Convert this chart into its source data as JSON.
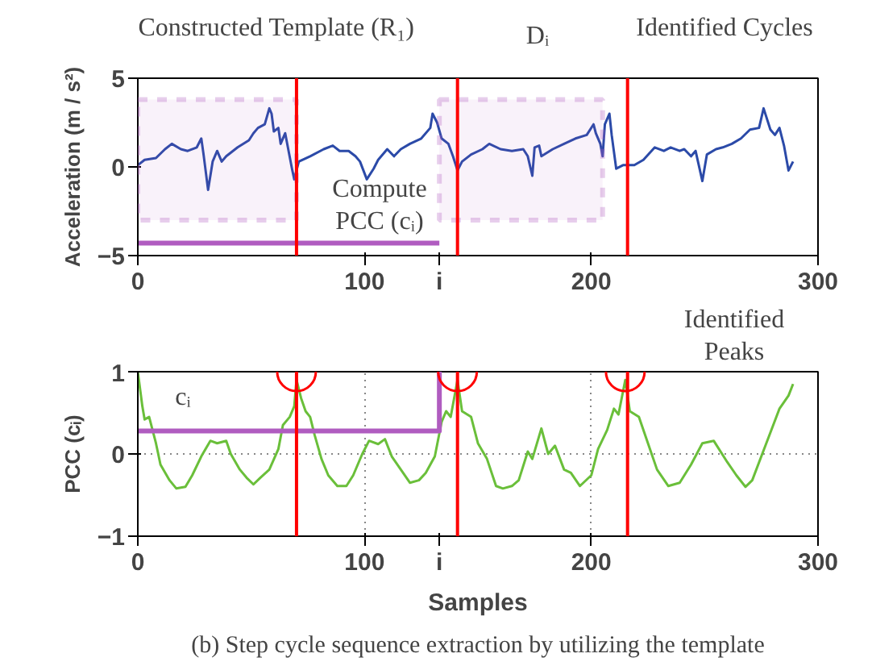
{
  "chart_data": [
    {
      "type": "line",
      "ylabel": "Acceleration (m / s²)",
      "xlim": [
        0,
        300
      ],
      "ylim": [
        -5,
        5
      ],
      "xticks": [
        0,
        100,
        {
          "value": 133,
          "label": "i"
        },
        200,
        300
      ],
      "yticks": [
        -5,
        0,
        5
      ],
      "grid": false,
      "series": [
        {
          "color": "#2b4aa8",
          "x": [
            0,
            3,
            8,
            12,
            15,
            19,
            22,
            26,
            28,
            29,
            31,
            33,
            35,
            37,
            39,
            44,
            49,
            51,
            53,
            56,
            58,
            59,
            60,
            62,
            63,
            65,
            68,
            69,
            71,
            76,
            82,
            86,
            89,
            93,
            96,
            98,
            101,
            104,
            106,
            110,
            113,
            116,
            120,
            125,
            129,
            130,
            132,
            134,
            137,
            139,
            141,
            143,
            147,
            152,
            155,
            160,
            165,
            170,
            172,
            174,
            175,
            177,
            178,
            183,
            188,
            193,
            198,
            201,
            202,
            204,
            205,
            206,
            208,
            209,
            211,
            214,
            219,
            223,
            228,
            232,
            235,
            239,
            241,
            244,
            246,
            249,
            251,
            255,
            258,
            262,
            266,
            270,
            274,
            276,
            279,
            281,
            283,
            285,
            287,
            289
          ],
          "values": [
            0.1,
            0.4,
            0.5,
            1.0,
            1.3,
            1.0,
            0.9,
            1.1,
            1.6,
            0.7,
            -1.3,
            0.3,
            0.9,
            0.3,
            0.6,
            1.1,
            1.5,
            1.9,
            2.2,
            2.4,
            3.3,
            3.0,
            2.0,
            2.2,
            1.3,
            1.9,
            -0.1,
            -0.7,
            0.3,
            0.6,
            1.0,
            1.2,
            0.9,
            0.9,
            0.6,
            0.3,
            -0.7,
            -0.1,
            0.4,
            1.0,
            0.6,
            1.0,
            1.3,
            1.6,
            2.2,
            3.0,
            2.5,
            1.6,
            1.3,
            0.6,
            -0.2,
            0.3,
            0.7,
            1.0,
            1.3,
            1.0,
            0.9,
            1.0,
            0.6,
            -0.5,
            1.1,
            1.2,
            0.6,
            1.0,
            1.3,
            1.6,
            1.8,
            2.4,
            1.9,
            1.3,
            0.6,
            2.4,
            3.0,
            1.8,
            -0.1,
            0.1,
            0.1,
            0.4,
            1.1,
            0.9,
            1.1,
            0.9,
            1.0,
            0.6,
            0.9,
            -0.8,
            0.7,
            1.0,
            1.1,
            1.3,
            1.6,
            2.1,
            2.2,
            3.3,
            2.1,
            1.8,
            2.2,
            1.2,
            -0.2,
            0.3
          ]
        },
        {
          "type": "line",
          "color": "#b05cc0",
          "x": [
            0,
            133
          ],
          "values": [
            -4.3,
            -4.3
          ]
        }
      ],
      "ref_lines": [
        {
          "axis": "x",
          "value": 70,
          "color": "#ff0000"
        },
        {
          "axis": "x",
          "value": 141,
          "color": "#ff0000"
        },
        {
          "axis": "x",
          "value": 216,
          "color": "#ff0000"
        }
      ],
      "bands": [
        {
          "axis": "x",
          "from": 0,
          "to": 70,
          "color": "#b05cc0"
        },
        {
          "axis": "x",
          "from": 133,
          "to": 205,
          "color": "#b05cc0"
        }
      ],
      "annotations": [
        "Constructed Template (R₁)",
        "Dᵢ",
        "Identified Cycles",
        "Compute\nPCC (cᵢ)"
      ]
    },
    {
      "type": "line",
      "xlabel": "Samples",
      "ylabel": "PCC (cᵢ)",
      "xlim": [
        0,
        300
      ],
      "ylim": [
        -1,
        1
      ],
      "xticks": [
        0,
        100,
        {
          "value": 133,
          "label": "i"
        },
        200,
        300
      ],
      "yticks": [
        -1,
        0,
        1
      ],
      "grid": true,
      "series": [
        {
          "color": "#6abf3a",
          "x": [
            0,
            2,
            3,
            5,
            8,
            10,
            14,
            17,
            21,
            24,
            28,
            32,
            35,
            39,
            41,
            45,
            48,
            51,
            54,
            58,
            62,
            64,
            67,
            69,
            70,
            72,
            74,
            76,
            78,
            81,
            84,
            88,
            92,
            95,
            99,
            102,
            106,
            109,
            112,
            116,
            120,
            124,
            127,
            131,
            134,
            136,
            138,
            141,
            143,
            147,
            150,
            154,
            158,
            161,
            165,
            168,
            172,
            174,
            178,
            181,
            184,
            188,
            191,
            195,
            200,
            203,
            207,
            210,
            212,
            215,
            217,
            221,
            225,
            229,
            234,
            239,
            244,
            249,
            254,
            260,
            264,
            268,
            271,
            275,
            279,
            283,
            287,
            289
          ],
          "values": [
            1.0,
            0.58,
            0.42,
            0.45,
            0.13,
            -0.13,
            -0.32,
            -0.42,
            -0.4,
            -0.26,
            -0.03,
            0.16,
            0.13,
            0.16,
            0,
            -0.19,
            -0.29,
            -0.37,
            -0.29,
            -0.19,
            0.06,
            0.35,
            0.45,
            0.58,
            0.9,
            0.68,
            0.52,
            0.45,
            0.23,
            -0.06,
            -0.26,
            -0.39,
            -0.39,
            -0.26,
            0,
            0.16,
            0.12,
            0.18,
            -0.03,
            -0.19,
            -0.35,
            -0.32,
            -0.23,
            -0.03,
            0.39,
            0.52,
            0.45,
            0.9,
            0.52,
            0.45,
            0.13,
            -0.06,
            -0.39,
            -0.42,
            -0.39,
            -0.32,
            0.03,
            -0.06,
            0.31,
            0,
            0.1,
            -0.19,
            -0.23,
            -0.39,
            -0.26,
            0.06,
            0.29,
            0.55,
            0.48,
            0.9,
            0.52,
            0.45,
            0.13,
            -0.19,
            -0.39,
            -0.35,
            -0.13,
            0.13,
            0.16,
            -0.1,
            -0.26,
            -0.4,
            -0.32,
            -0.03,
            0.26,
            0.55,
            0.71,
            0.85
          ]
        },
        {
          "type": "line",
          "color": "#b05cc0",
          "x": [
            133,
            133,
            0
          ],
          "values": [
            1,
            0.28,
            0.28
          ]
        },
        {
          "type": "scatter",
          "marker": "circle",
          "color": "#ff0000",
          "x": [
            70,
            141,
            215
          ],
          "values": [
            1,
            1,
            1
          ]
        }
      ],
      "ref_lines": [
        {
          "axis": "x",
          "value": 70,
          "color": "#ff0000"
        },
        {
          "axis": "x",
          "value": 141,
          "color": "#ff0000"
        },
        {
          "axis": "x",
          "value": 216,
          "color": "#ff0000"
        }
      ],
      "annotations": [
        "Identified\nPeaks",
        "cᵢ",
        "(b) Step cycle sequence extraction by utilizing the template"
      ]
    }
  ]
}
